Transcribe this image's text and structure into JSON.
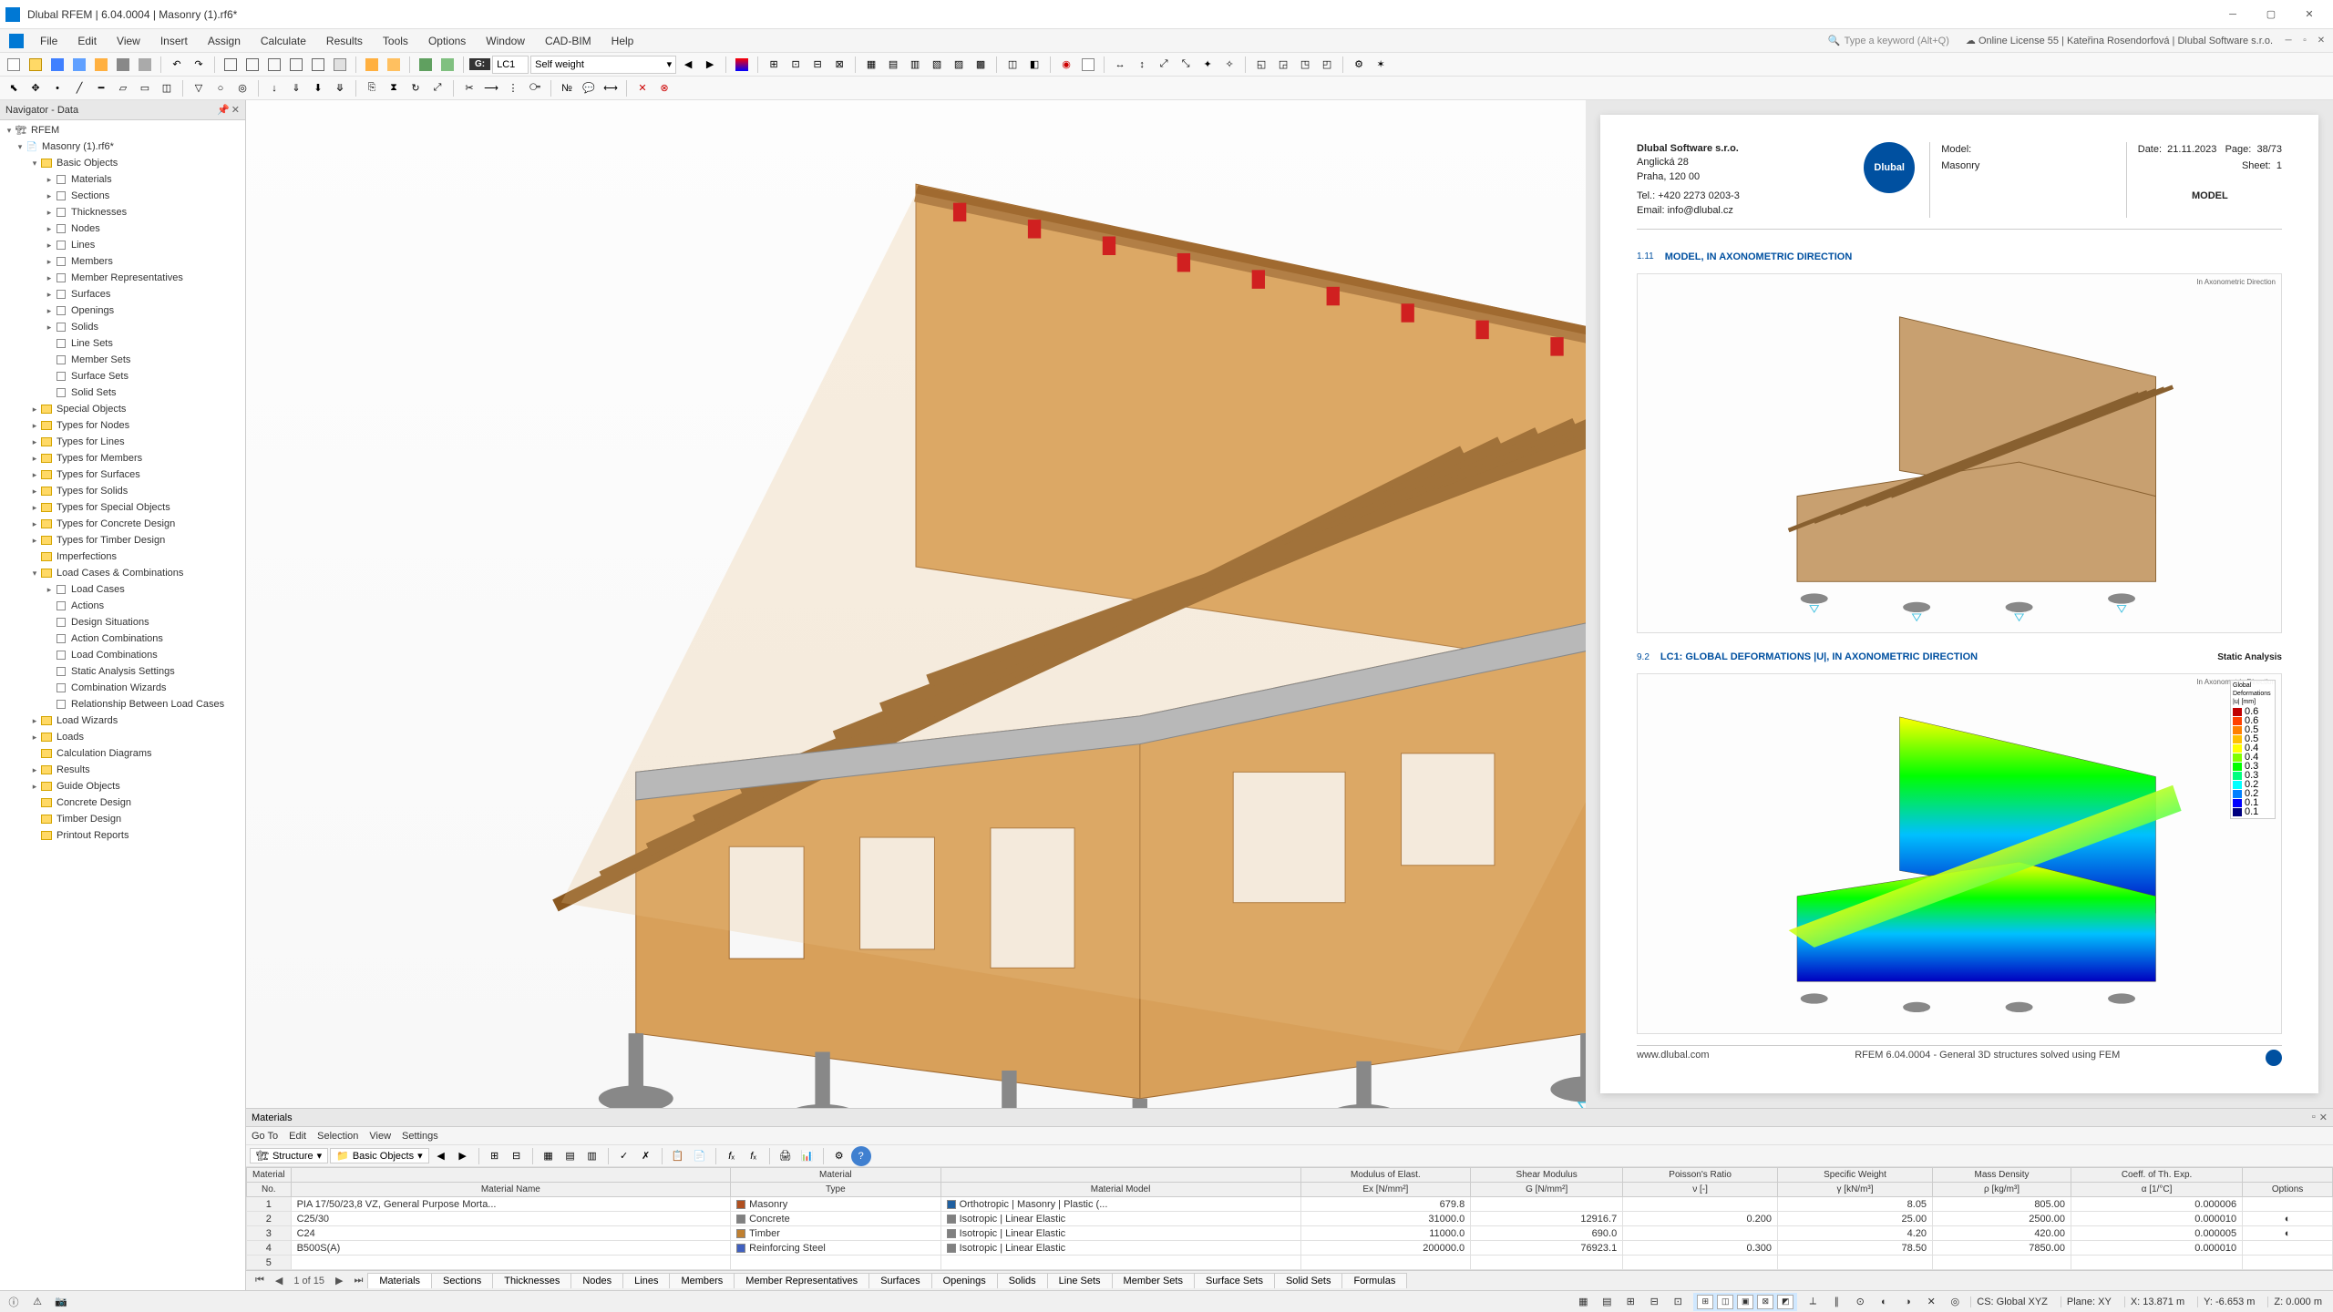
{
  "app": {
    "title": "Dlubal RFEM | 6.04.0004 | Masonry (1).rf6*",
    "menus": [
      "File",
      "Edit",
      "View",
      "Insert",
      "Assign",
      "Calculate",
      "Results",
      "Tools",
      "Options",
      "Window",
      "CAD-BIM",
      "Help"
    ],
    "search_placeholder": "Type a keyword (Alt+Q)",
    "license": "Online License 55 | Kateřina Rosendorfová | Dlubal Software s.r.o."
  },
  "toolbars": {
    "lc_label": "LC1",
    "lc_name": "Self weight",
    "g_label": "G:"
  },
  "navigator": {
    "title": "Navigator - Data",
    "root": "RFEM",
    "model": "Masonry (1).rf6*",
    "tree": [
      {
        "l": 1,
        "exp": "▾",
        "icon": "folder",
        "label": "Basic Objects"
      },
      {
        "l": 2,
        "exp": "▸",
        "icon": "leaf",
        "label": "Materials"
      },
      {
        "l": 2,
        "exp": "▸",
        "icon": "leaf",
        "label": "Sections"
      },
      {
        "l": 2,
        "exp": "▸",
        "icon": "leaf",
        "label": "Thicknesses"
      },
      {
        "l": 2,
        "exp": "▸",
        "icon": "leaf",
        "label": "Nodes"
      },
      {
        "l": 2,
        "exp": "▸",
        "icon": "leaf",
        "label": "Lines"
      },
      {
        "l": 2,
        "exp": "▸",
        "icon": "leaf",
        "label": "Members"
      },
      {
        "l": 2,
        "exp": "▸",
        "icon": "leaf",
        "label": "Member Representatives"
      },
      {
        "l": 2,
        "exp": "▸",
        "icon": "leaf",
        "label": "Surfaces"
      },
      {
        "l": 2,
        "exp": "▸",
        "icon": "leaf",
        "label": "Openings"
      },
      {
        "l": 2,
        "exp": "▸",
        "icon": "leaf",
        "label": "Solids"
      },
      {
        "l": 2,
        "exp": "",
        "icon": "leaf",
        "label": "Line Sets"
      },
      {
        "l": 2,
        "exp": "",
        "icon": "leaf",
        "label": "Member Sets"
      },
      {
        "l": 2,
        "exp": "",
        "icon": "leaf",
        "label": "Surface Sets"
      },
      {
        "l": 2,
        "exp": "",
        "icon": "leaf",
        "label": "Solid Sets"
      },
      {
        "l": 1,
        "exp": "▸",
        "icon": "folder",
        "label": "Special Objects"
      },
      {
        "l": 1,
        "exp": "▸",
        "icon": "folder",
        "label": "Types for Nodes"
      },
      {
        "l": 1,
        "exp": "▸",
        "icon": "folder",
        "label": "Types for Lines"
      },
      {
        "l": 1,
        "exp": "▸",
        "icon": "folder",
        "label": "Types for Members"
      },
      {
        "l": 1,
        "exp": "▸",
        "icon": "folder",
        "label": "Types for Surfaces"
      },
      {
        "l": 1,
        "exp": "▸",
        "icon": "folder",
        "label": "Types for Solids"
      },
      {
        "l": 1,
        "exp": "▸",
        "icon": "folder",
        "label": "Types for Special Objects"
      },
      {
        "l": 1,
        "exp": "▸",
        "icon": "folder",
        "label": "Types for Concrete Design"
      },
      {
        "l": 1,
        "exp": "▸",
        "icon": "folder",
        "label": "Types for Timber Design"
      },
      {
        "l": 1,
        "exp": "",
        "icon": "folder",
        "label": "Imperfections"
      },
      {
        "l": 1,
        "exp": "▾",
        "icon": "folder",
        "label": "Load Cases & Combinations"
      },
      {
        "l": 2,
        "exp": "▸",
        "icon": "leaf",
        "label": "Load Cases"
      },
      {
        "l": 2,
        "exp": "",
        "icon": "leaf",
        "label": "Actions"
      },
      {
        "l": 2,
        "exp": "",
        "icon": "leaf",
        "label": "Design Situations"
      },
      {
        "l": 2,
        "exp": "",
        "icon": "leaf",
        "label": "Action Combinations"
      },
      {
        "l": 2,
        "exp": "",
        "icon": "leaf",
        "label": "Load Combinations"
      },
      {
        "l": 2,
        "exp": "",
        "icon": "leaf",
        "label": "Static Analysis Settings"
      },
      {
        "l": 2,
        "exp": "",
        "icon": "leaf",
        "label": "Combination Wizards"
      },
      {
        "l": 2,
        "exp": "",
        "icon": "leaf",
        "label": "Relationship Between Load Cases"
      },
      {
        "l": 1,
        "exp": "▸",
        "icon": "folder",
        "label": "Load Wizards"
      },
      {
        "l": 1,
        "exp": "▸",
        "icon": "folder",
        "label": "Loads"
      },
      {
        "l": 1,
        "exp": "",
        "icon": "folder",
        "label": "Calculation Diagrams"
      },
      {
        "l": 1,
        "exp": "▸",
        "icon": "folder",
        "label": "Results"
      },
      {
        "l": 1,
        "exp": "▸",
        "icon": "folder",
        "label": "Guide Objects"
      },
      {
        "l": 1,
        "exp": "",
        "icon": "folder",
        "label": "Concrete Design"
      },
      {
        "l": 1,
        "exp": "",
        "icon": "folder",
        "label": "Timber Design"
      },
      {
        "l": 1,
        "exp": "",
        "icon": "folder",
        "label": "Printout Reports"
      }
    ]
  },
  "model_colors": {
    "wall": "#d8a05a",
    "wall_dark": "#c08840",
    "beam": "#a06a30",
    "concrete": "#b8b8b8",
    "steel": "#888888",
    "support": "#707070",
    "accent_red": "#d02020",
    "background": "#ffffff"
  },
  "report": {
    "company_name": "Dlubal Software s.r.o.",
    "company_addr1": "Anglická 28",
    "company_addr2": "Praha, 120 00",
    "company_tel": "Tel.: +420 2273 0203-3",
    "company_email": "Email: info@dlubal.cz",
    "logo_text": "Dlubal",
    "meta_model_label": "Model:",
    "meta_model": "Masonry",
    "meta_date_label": "Date:",
    "meta_date": "21.11.2023",
    "meta_page_label": "Page:",
    "meta_page": "38/73",
    "meta_sheet_label": "Sheet:",
    "meta_sheet": "1",
    "meta_title": "MODEL",
    "sec1_num": "1.11",
    "sec1_title": "MODEL, IN AXONOMETRIC DIRECTION",
    "sec1_caption": "In Axonometric Direction",
    "sec2_num": "9.2",
    "sec2_title": "LC1: GLOBAL DEFORMATIONS |U|, IN AXONOMETRIC DIRECTION",
    "sec2_right": "Static Analysis",
    "sec2_caption": "In Axonometric Direction",
    "footer_left": "www.dlubal.com",
    "footer_mid": "RFEM 6.04.0004 - General 3D structures solved using FEM",
    "colorbar": {
      "title1": "Global",
      "title2": "Deformations",
      "title3": "|u| [mm]",
      "stops": [
        {
          "v": "0.6",
          "c": "#c00000"
        },
        {
          "v": "0.6",
          "c": "#ff4000"
        },
        {
          "v": "0.5",
          "c": "#ff8000"
        },
        {
          "v": "0.5",
          "c": "#ffc000"
        },
        {
          "v": "0.4",
          "c": "#ffff00"
        },
        {
          "v": "0.4",
          "c": "#80ff00"
        },
        {
          "v": "0.3",
          "c": "#00ff00"
        },
        {
          "v": "0.3",
          "c": "#00ff80"
        },
        {
          "v": "0.2",
          "c": "#00ffff"
        },
        {
          "v": "0.2",
          "c": "#0080ff"
        },
        {
          "v": "0.1",
          "c": "#0000ff"
        },
        {
          "v": "0.1",
          "c": "#000080"
        }
      ]
    }
  },
  "materials_panel": {
    "title": "Materials",
    "menu": [
      "Go To",
      "Edit",
      "Selection",
      "View",
      "Settings"
    ],
    "combo_structure": "Structure",
    "combo_basic": "Basic Objects",
    "columns": [
      {
        "h1": "Material",
        "h2": "No."
      },
      {
        "h1": "",
        "h2": "Material Name"
      },
      {
        "h1": "Material",
        "h2": "Type"
      },
      {
        "h1": "",
        "h2": "Material Model"
      },
      {
        "h1": "Modulus of Elast.",
        "h2": "Ex [N/mm²]"
      },
      {
        "h1": "Shear Modulus",
        "h2": "G [N/mm²]"
      },
      {
        "h1": "Poisson's Ratio",
        "h2": "ν [-]"
      },
      {
        "h1": "Specific Weight",
        "h2": "γ [kN/m³]"
      },
      {
        "h1": "Mass Density",
        "h2": "ρ [kg/m³]"
      },
      {
        "h1": "Coeff. of Th. Exp.",
        "h2": "α [1/°C]"
      },
      {
        "h1": "",
        "h2": "Options"
      }
    ],
    "rows": [
      {
        "no": "1",
        "name": "PIA 17/50/23,8 VZ, General Purpose Morta...",
        "type": "Masonry",
        "type_c": "#b05020",
        "model": "Orthotropic | Masonry | Plastic (...",
        "model_c": "#2060a0",
        "E": "679.8",
        "G": "",
        "nu": "",
        "gamma": "8.05",
        "rho": "805.00",
        "alpha": "0.000006",
        "opt": ""
      },
      {
        "no": "2",
        "name": "C25/30",
        "type": "Concrete",
        "type_c": "#808080",
        "model": "Isotropic | Linear Elastic",
        "model_c": "#808080",
        "E": "31000.0",
        "G": "12916.7",
        "nu": "0.200",
        "gamma": "25.00",
        "rho": "2500.00",
        "alpha": "0.000010",
        "opt": "◐"
      },
      {
        "no": "3",
        "name": "C24",
        "type": "Timber",
        "type_c": "#c08030",
        "model": "Isotropic | Linear Elastic",
        "model_c": "#808080",
        "E": "11000.0",
        "G": "690.0",
        "nu": "",
        "gamma": "4.20",
        "rho": "420.00",
        "alpha": "0.000005",
        "opt": "◐"
      },
      {
        "no": "4",
        "name": "B500S(A)",
        "type": "Reinforcing Steel",
        "type_c": "#4060c0",
        "model": "Isotropic | Linear Elastic",
        "model_c": "#808080",
        "E": "200000.0",
        "G": "76923.1",
        "nu": "0.300",
        "gamma": "78.50",
        "rho": "7850.00",
        "alpha": "0.000010",
        "opt": ""
      },
      {
        "no": "5",
        "name": "",
        "type": "",
        "type_c": "",
        "model": "",
        "model_c": "",
        "E": "",
        "G": "",
        "nu": "",
        "gamma": "",
        "rho": "",
        "alpha": "",
        "opt": ""
      }
    ],
    "pager": "1 of 15",
    "tabs": [
      "Materials",
      "Sections",
      "Thicknesses",
      "Nodes",
      "Lines",
      "Members",
      "Member Representatives",
      "Surfaces",
      "Openings",
      "Solids",
      "Line Sets",
      "Member Sets",
      "Surface Sets",
      "Solid Sets",
      "Formulas"
    ],
    "active_tab": 0
  },
  "statusbar": {
    "cs": "CS: Global XYZ",
    "plane": "Plane: XY",
    "x": "X: 13.871 m",
    "y": "Y: -6.653 m",
    "z": "Z: 0.000 m"
  }
}
